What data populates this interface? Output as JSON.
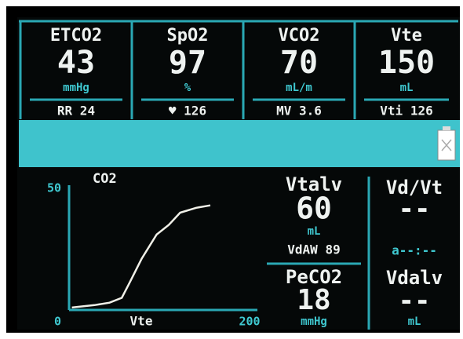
{
  "top_panels": [
    {
      "label": "ETCO2",
      "value": 43,
      "unit": "mmHg",
      "footer": "RR 24"
    },
    {
      "label": "SpO2",
      "value": 97,
      "unit": "%",
      "footer": "♥ 126"
    },
    {
      "label": "VCO2",
      "value": 70,
      "unit": "mL/m",
      "footer": "MV 3.6"
    },
    {
      "label": "Vte",
      "value": 150,
      "unit": "mL",
      "footer": "Vti 126"
    }
  ],
  "chart_data": {
    "type": "line",
    "title": "CO2",
    "x_label": "Vte",
    "x": [
      3,
      27,
      43,
      56,
      64,
      77,
      93,
      106,
      118,
      135,
      150
    ],
    "values": [
      1,
      2,
      3,
      5,
      11,
      21,
      31,
      35,
      40,
      42,
      43
    ],
    "color": "#f0f0e8",
    "xlim": [
      0,
      200
    ],
    "xticks": [
      0,
      200
    ],
    "ylim": [
      0,
      50
    ],
    "yticks": [
      0,
      50
    ]
  },
  "middle_panel": {
    "label": "Vtalv",
    "value": 60,
    "unit": "mL",
    "footer": "VdAW 89",
    "label2": "PeCO2",
    "value2": 18,
    "unit2": "mmHg"
  },
  "right_panel": {
    "label": "Vd/Vt",
    "value": "--",
    "abg": "a--:--",
    "label2": "Vdalv",
    "value2": "--",
    "unit2": "mL"
  }
}
